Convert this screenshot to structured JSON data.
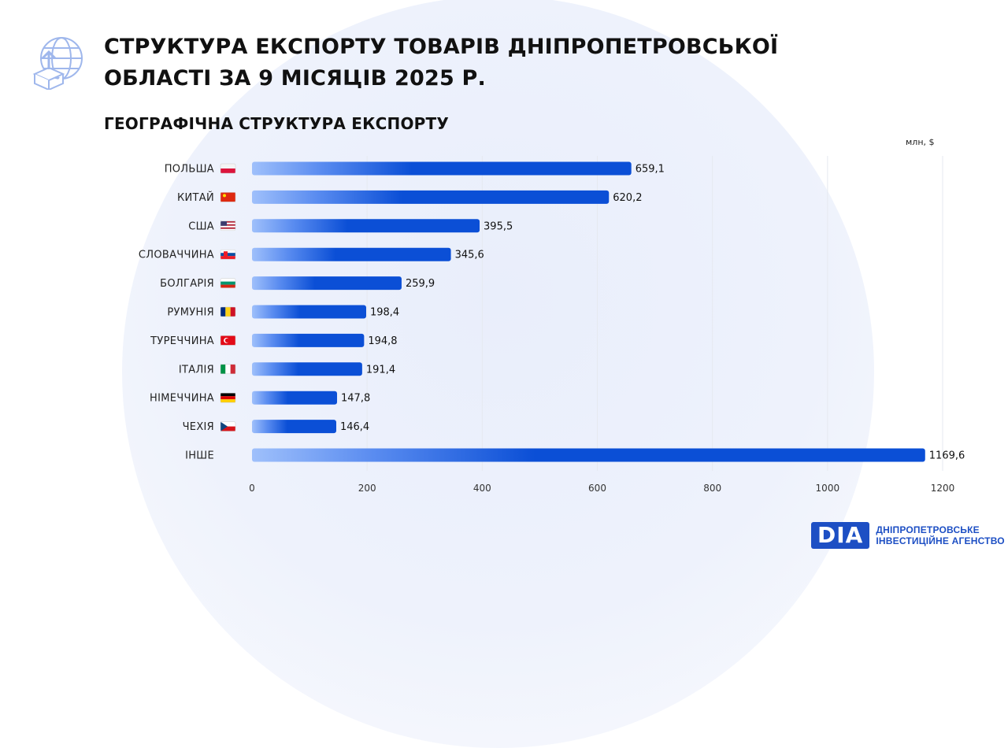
{
  "header": {
    "title": "СТРУКТУРА ЕКСПОРТУ ТОВАРІВ ДНІПРОПЕТРОВСЬКОЇ\nОБЛАСТІ ЗА 9 МІСЯЦІВ 2025 Р.",
    "subtitle": "ГЕОГРАФІЧНА СТРУКТУРА ЕКСПОРТУ",
    "icon": "globe-export-icon"
  },
  "colors": {
    "bar_start": "#9fc0fb",
    "bar_end": "#0b4fd6",
    "accent": "#1d4fc4",
    "grid": "#e6e9f0"
  },
  "chart_data": {
    "type": "bar",
    "orientation": "horizontal",
    "title": "ГЕОГРАФІЧНА СТРУКТУРА ЕКСПОРТУ",
    "unit": "млн, $",
    "categories": [
      "ПОЛЬША",
      "КИТАЙ",
      "США",
      "СЛОВАЧЧИНА",
      "БОЛГАРІЯ",
      "РУМУНІЯ",
      "ТУРЕЧЧИНА",
      "ІТАЛІЯ",
      "НІМЕЧЧИНА",
      "ЧЕХІЯ",
      "ІНШЕ"
    ],
    "values": [
      659.1,
      620.2,
      395.5,
      345.6,
      259.9,
      198.4,
      194.8,
      191.4,
      147.8,
      146.4,
      1169.6
    ],
    "value_labels": [
      "659,1",
      "620,2",
      "395,5",
      "345,6",
      "259,9",
      "198,4",
      "194,8",
      "191,4",
      "147,8",
      "146,4",
      "1169,6"
    ],
    "flags": [
      "poland-flag-icon",
      "china-flag-icon",
      "usa-flag-icon",
      "slovakia-flag-icon",
      "bulgaria-flag-icon",
      "romania-flag-icon",
      "turkey-flag-icon",
      "italy-flag-icon",
      "germany-flag-icon",
      "czechia-flag-icon",
      ""
    ],
    "xticks": [
      0,
      200,
      400,
      600,
      800,
      1000,
      1200
    ],
    "xlim": [
      0,
      1200
    ],
    "grid": "vertical",
    "legend": "none"
  },
  "brand": {
    "mark": "DIA",
    "line1": "ДНІПРОПЕТРОВСЬКЕ",
    "line2": "ІНВЕСТИЦІЙНЕ АГЕНСТВО"
  }
}
